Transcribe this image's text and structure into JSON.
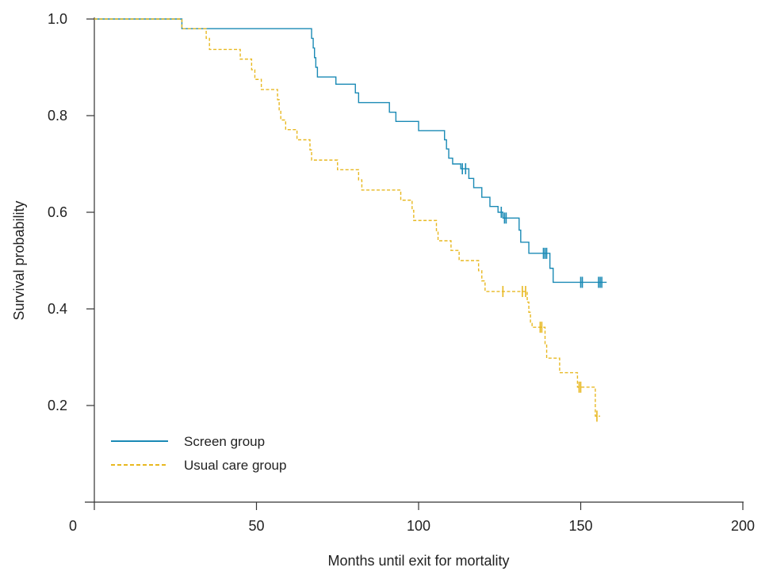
{
  "chart_data": {
    "type": "line",
    "title": "",
    "xlabel": "Months until exit for mortality",
    "ylabel": "Survival probability",
    "xlim": [
      0,
      200
    ],
    "ylim": [
      0,
      1.0
    ],
    "x_ticks": [
      0,
      50,
      100,
      150,
      200
    ],
    "y_ticks": [
      0.2,
      0.4,
      0.6,
      0.8,
      1.0
    ],
    "x_tick_labels": [
      "0",
      "50",
      "100",
      "150",
      "200"
    ],
    "y_tick_labels": [
      "0.2",
      "0.4",
      "0.6",
      "0.8",
      "1.0"
    ],
    "grid": false,
    "legend_position": "bottom-left",
    "series": [
      {
        "name": "Screen group",
        "color": "#1a8ab5",
        "style": "solid",
        "steps": [
          [
            0,
            1.0
          ],
          [
            27,
            0.98
          ],
          [
            67,
            0.96
          ],
          [
            67.5,
            0.94
          ],
          [
            67.9,
            0.92
          ],
          [
            68.3,
            0.9
          ],
          [
            68.8,
            0.88
          ],
          [
            74.5,
            0.865
          ],
          [
            80.5,
            0.847
          ],
          [
            81.5,
            0.827
          ],
          [
            91,
            0.807
          ],
          [
            93,
            0.788
          ],
          [
            100,
            0.769
          ],
          [
            108,
            0.75
          ],
          [
            108.6,
            0.731
          ],
          [
            109.3,
            0.712
          ],
          [
            110.5,
            0.7
          ],
          [
            113,
            0.69
          ],
          [
            115.5,
            0.67
          ],
          [
            117,
            0.651
          ],
          [
            119.5,
            0.631
          ],
          [
            122,
            0.612
          ],
          [
            124.5,
            0.6
          ],
          [
            126,
            0.588
          ],
          [
            131,
            0.563
          ],
          [
            131.5,
            0.538
          ],
          [
            134,
            0.515
          ],
          [
            140.5,
            0.484
          ],
          [
            141.5,
            0.455
          ],
          [
            158,
            0.455
          ]
        ],
        "censor": [
          113.5,
          114.5,
          125.5,
          126.5,
          127,
          138.5,
          139,
          139.5,
          150,
          150.5,
          155.5,
          156,
          156.5
        ]
      },
      {
        "name": "Usual care group",
        "color": "#e8b820",
        "style": "dashed",
        "steps": [
          [
            0,
            1.0
          ],
          [
            27,
            0.98
          ],
          [
            34.5,
            0.96
          ],
          [
            35.5,
            0.937
          ],
          [
            45,
            0.917
          ],
          [
            48.5,
            0.895
          ],
          [
            49.5,
            0.875
          ],
          [
            51.5,
            0.854
          ],
          [
            56.5,
            0.833
          ],
          [
            57,
            0.812
          ],
          [
            57.5,
            0.791
          ],
          [
            59,
            0.771
          ],
          [
            62.5,
            0.75
          ],
          [
            66.5,
            0.729
          ],
          [
            67,
            0.708
          ],
          [
            75,
            0.688
          ],
          [
            81.5,
            0.667
          ],
          [
            82.5,
            0.646
          ],
          [
            94.5,
            0.625
          ],
          [
            98,
            0.604
          ],
          [
            98.5,
            0.583
          ],
          [
            105.5,
            0.562
          ],
          [
            106,
            0.541
          ],
          [
            110,
            0.521
          ],
          [
            112.5,
            0.5
          ],
          [
            118.5,
            0.479
          ],
          [
            119.5,
            0.458
          ],
          [
            120.5,
            0.436
          ],
          [
            133.5,
            0.414
          ],
          [
            134,
            0.393
          ],
          [
            134.5,
            0.37
          ],
          [
            135,
            0.362
          ],
          [
            139,
            0.327
          ],
          [
            139.5,
            0.298
          ],
          [
            143.5,
            0.268
          ],
          [
            149,
            0.238
          ],
          [
            154.5,
            0.178
          ],
          [
            156,
            0.178
          ]
        ],
        "censor": [
          126,
          132,
          133,
          137.5,
          138,
          149.5,
          150,
          155
        ]
      }
    ]
  }
}
